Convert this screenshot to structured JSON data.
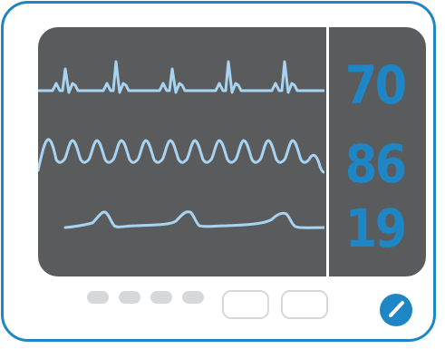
{
  "screen": {
    "readouts": {
      "heart_rate": "70",
      "spo2": "86",
      "respiration": "19"
    }
  },
  "controls": {
    "indicator_count": 4,
    "soft_button_count": 2,
    "knob_icon": "dial-knob-icon"
  },
  "colors": {
    "frame": "#1e86c4",
    "screen": "#5a5b5d",
    "waveform": "#a8d4f2",
    "readout": "#1e86c4",
    "controls": "#d7d8da"
  }
}
